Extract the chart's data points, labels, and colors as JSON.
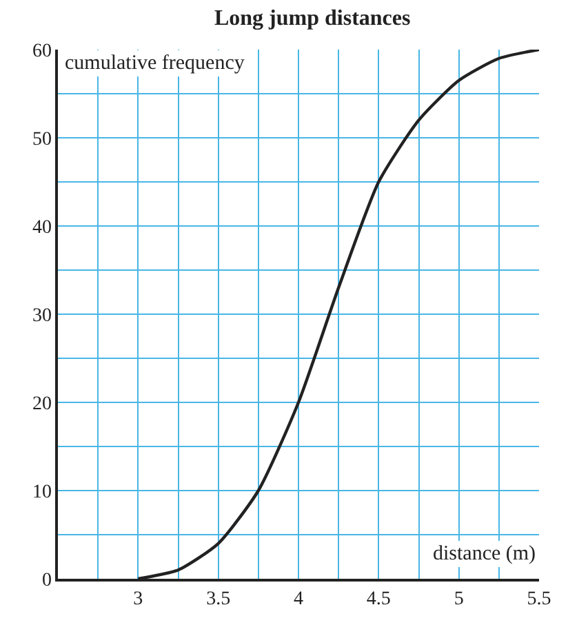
{
  "chart_data": {
    "type": "line",
    "title": "Long jump distances",
    "xlabel": "distance (m)",
    "ylabel": "cumulative frequency",
    "x": [
      3,
      3.25,
      3.5,
      3.75,
      4,
      4.25,
      4.5,
      4.75,
      5,
      5.25,
      5.5
    ],
    "series": [
      {
        "color": "#222222",
        "values": [
          0,
          1,
          4,
          10,
          20,
          33,
          45,
          52,
          56.5,
          59,
          60
        ]
      }
    ],
    "xlim": [
      2.5,
      5.5
    ],
    "ylim": [
      0,
      60
    ],
    "xticks": [
      {
        "value": 2.5,
        "label": null
      },
      {
        "value": 2.75,
        "label": null
      },
      3,
      {
        "value": 3.25,
        "label": null
      },
      3.5,
      {
        "value": 3.75,
        "label": null
      },
      4,
      {
        "value": 4.25,
        "label": null
      },
      4.5,
      {
        "value": 4.75,
        "label": null
      },
      5,
      {
        "value": 5.25,
        "label": null
      },
      5.5
    ],
    "yticks": [
      0,
      {
        "value": 5,
        "label": null
      },
      10,
      {
        "value": 15,
        "label": null
      },
      20,
      {
        "value": 25,
        "label": null
      },
      30,
      {
        "value": 35,
        "label": null
      },
      40,
      {
        "value": 45,
        "label": null
      },
      50,
      {
        "value": 55,
        "label": null
      },
      60
    ],
    "grid": true,
    "marker": "none",
    "line_style": "solid"
  }
}
